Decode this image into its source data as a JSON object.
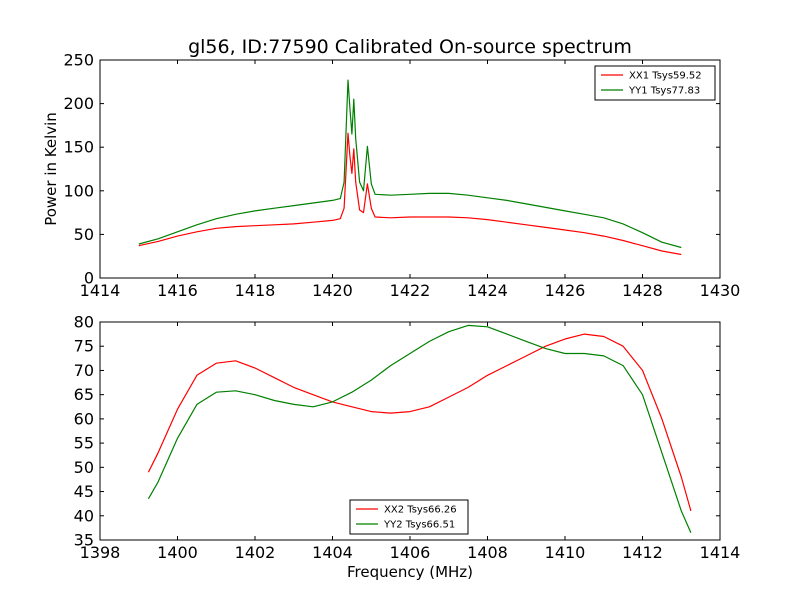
{
  "chart_data": [
    {
      "type": "line",
      "title": "gl56, ID:77590 Calibrated On-source spectrum",
      "xlabel": "",
      "ylabel": "Power in Kelvin",
      "xlim": [
        1414,
        1430
      ],
      "ylim": [
        0,
        250
      ],
      "xticks": [
        1414,
        1416,
        1418,
        1420,
        1422,
        1424,
        1426,
        1428,
        1430
      ],
      "yticks": [
        0,
        50,
        100,
        150,
        200,
        250
      ],
      "legend_position": "top-right",
      "series": [
        {
          "name": "XX1 Tsys59.52",
          "color": "#ff0000",
          "points": [
            [
              1415.0,
              37
            ],
            [
              1415.5,
              42
            ],
            [
              1416.0,
              48
            ],
            [
              1416.5,
              53
            ],
            [
              1417.0,
              57
            ],
            [
              1417.5,
              59
            ],
            [
              1418.0,
              60
            ],
            [
              1418.5,
              61
            ],
            [
              1419.0,
              62
            ],
            [
              1419.5,
              64
            ],
            [
              1420.0,
              66
            ],
            [
              1420.2,
              68
            ],
            [
              1420.3,
              80
            ],
            [
              1420.4,
              166
            ],
            [
              1420.45,
              140
            ],
            [
              1420.5,
              120
            ],
            [
              1420.55,
              148
            ],
            [
              1420.6,
              110
            ],
            [
              1420.7,
              78
            ],
            [
              1420.8,
              75
            ],
            [
              1420.9,
              108
            ],
            [
              1421.0,
              80
            ],
            [
              1421.1,
              70
            ],
            [
              1421.5,
              69
            ],
            [
              1422.0,
              70
            ],
            [
              1422.5,
              70
            ],
            [
              1423.0,
              70
            ],
            [
              1423.5,
              69
            ],
            [
              1424.0,
              67
            ],
            [
              1424.5,
              64
            ],
            [
              1425.0,
              61
            ],
            [
              1425.5,
              58
            ],
            [
              1426.0,
              55
            ],
            [
              1426.5,
              52
            ],
            [
              1427.0,
              48
            ],
            [
              1427.5,
              43
            ],
            [
              1428.0,
              37
            ],
            [
              1428.5,
              31
            ],
            [
              1429.0,
              27
            ]
          ]
        },
        {
          "name": "YY1 Tsys77.83",
          "color": "#008000",
          "points": [
            [
              1415.0,
              39
            ],
            [
              1415.5,
              45
            ],
            [
              1416.0,
              53
            ],
            [
              1416.5,
              61
            ],
            [
              1417.0,
              68
            ],
            [
              1417.5,
              73
            ],
            [
              1418.0,
              77
            ],
            [
              1418.5,
              80
            ],
            [
              1419.0,
              83
            ],
            [
              1419.5,
              86
            ],
            [
              1420.0,
              89
            ],
            [
              1420.2,
              91
            ],
            [
              1420.3,
              110
            ],
            [
              1420.4,
              227
            ],
            [
              1420.45,
              195
            ],
            [
              1420.5,
              165
            ],
            [
              1420.55,
              205
            ],
            [
              1420.6,
              160
            ],
            [
              1420.7,
              110
            ],
            [
              1420.8,
              100
            ],
            [
              1420.9,
              151
            ],
            [
              1421.0,
              108
            ],
            [
              1421.1,
              96
            ],
            [
              1421.5,
              95
            ],
            [
              1422.0,
              96
            ],
            [
              1422.5,
              97
            ],
            [
              1423.0,
              97
            ],
            [
              1423.5,
              95
            ],
            [
              1424.0,
              92
            ],
            [
              1424.5,
              89
            ],
            [
              1425.0,
              85
            ],
            [
              1425.5,
              81
            ],
            [
              1426.0,
              77
            ],
            [
              1426.5,
              73
            ],
            [
              1427.0,
              69
            ],
            [
              1427.5,
              62
            ],
            [
              1428.0,
              52
            ],
            [
              1428.5,
              41
            ],
            [
              1429.0,
              35
            ]
          ]
        }
      ]
    },
    {
      "type": "line",
      "title": "",
      "xlabel": "Frequency (MHz)",
      "ylabel": "",
      "xlim": [
        1398,
        1414
      ],
      "ylim": [
        35,
        80
      ],
      "xticks": [
        1398,
        1400,
        1402,
        1404,
        1406,
        1408,
        1410,
        1412,
        1414
      ],
      "yticks": [
        35,
        40,
        45,
        50,
        55,
        60,
        65,
        70,
        75,
        80
      ],
      "legend_position": "lower-center",
      "series": [
        {
          "name": "XX2 Tsys66.26",
          "color": "#ff0000",
          "points": [
            [
              1399.25,
              49
            ],
            [
              1399.5,
              53
            ],
            [
              1400.0,
              62
            ],
            [
              1400.5,
              69
            ],
            [
              1401.0,
              71.5
            ],
            [
              1401.5,
              72
            ],
            [
              1402.0,
              70.5
            ],
            [
              1402.5,
              68.5
            ],
            [
              1403.0,
              66.5
            ],
            [
              1403.5,
              65
            ],
            [
              1404.0,
              63.5
            ],
            [
              1404.5,
              62.5
            ],
            [
              1405.0,
              61.5
            ],
            [
              1405.5,
              61.2
            ],
            [
              1406.0,
              61.5
            ],
            [
              1406.5,
              62.5
            ],
            [
              1407.0,
              64.5
            ],
            [
              1407.5,
              66.5
            ],
            [
              1408.0,
              69
            ],
            [
              1408.5,
              71
            ],
            [
              1409.0,
              73
            ],
            [
              1409.5,
              75
            ],
            [
              1410.0,
              76.5
            ],
            [
              1410.5,
              77.5
            ],
            [
              1411.0,
              77
            ],
            [
              1411.5,
              75
            ],
            [
              1412.0,
              70
            ],
            [
              1412.5,
              60
            ],
            [
              1413.0,
              48
            ],
            [
              1413.25,
              41
            ]
          ]
        },
        {
          "name": "YY2 Tsys66.51",
          "color": "#008000",
          "points": [
            [
              1399.25,
              43.5
            ],
            [
              1399.5,
              47
            ],
            [
              1400.0,
              56
            ],
            [
              1400.5,
              63
            ],
            [
              1401.0,
              65.5
            ],
            [
              1401.5,
              65.8
            ],
            [
              1402.0,
              65
            ],
            [
              1402.5,
              63.8
            ],
            [
              1403.0,
              63
            ],
            [
              1403.5,
              62.5
            ],
            [
              1404.0,
              63.5
            ],
            [
              1404.5,
              65.5
            ],
            [
              1405.0,
              68
            ],
            [
              1405.5,
              71
            ],
            [
              1406.0,
              73.5
            ],
            [
              1406.5,
              76
            ],
            [
              1407.0,
              78
            ],
            [
              1407.5,
              79.3
            ],
            [
              1408.0,
              79
            ],
            [
              1408.5,
              77.5
            ],
            [
              1409.0,
              76
            ],
            [
              1409.5,
              74.5
            ],
            [
              1410.0,
              73.5
            ],
            [
              1410.5,
              73.5
            ],
            [
              1411.0,
              73
            ],
            [
              1411.5,
              71
            ],
            [
              1412.0,
              65
            ],
            [
              1412.5,
              53
            ],
            [
              1413.0,
              41
            ],
            [
              1413.25,
              36.5
            ]
          ]
        }
      ]
    }
  ]
}
